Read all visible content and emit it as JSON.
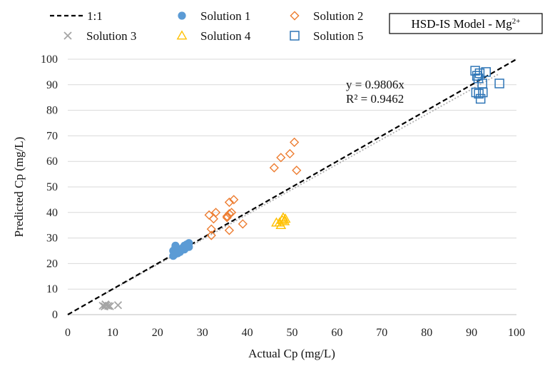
{
  "chart_data": {
    "type": "scatter",
    "title": "HSD-IS Model - Mg²⁺",
    "title_parts": {
      "main": "HSD-IS Model - Mg",
      "sup": "2+"
    },
    "xlabel": "Actual Cp (mg/L)",
    "ylabel": "Predicted Cp (mg/L)",
    "xlim": [
      0,
      100
    ],
    "ylim": [
      0,
      100
    ],
    "xticks": [
      0,
      10,
      20,
      30,
      40,
      50,
      60,
      70,
      80,
      90,
      100
    ],
    "yticks": [
      0,
      10,
      20,
      30,
      40,
      50,
      60,
      70,
      80,
      90,
      100
    ],
    "grid": "horizontal",
    "legend_position": "top",
    "reference_line": {
      "name": "1:1",
      "slope": 1,
      "color": "#000000",
      "style": "dashed"
    },
    "trendline": {
      "slope": 0.9806,
      "color": "#b0b0b0",
      "style": "dotted"
    },
    "annotations": {
      "equation": "y = 0.9806x",
      "r2": "R² = 0.9462"
    },
    "series": [
      {
        "name": "Solution 1",
        "marker": "circle",
        "color": "#5b9bd5",
        "x": [
          23.5,
          24,
          24.5,
          25,
          25.5,
          26,
          26.5,
          27,
          23.8,
          24.2,
          25,
          26,
          27,
          24,
          25.5,
          26.5,
          23.5,
          24.5
        ],
        "y": [
          25,
          26.5,
          24.5,
          25.5,
          26,
          27,
          26.5,
          28,
          23.5,
          25,
          24.5,
          25.5,
          26.5,
          27,
          26,
          27.5,
          23,
          24
        ]
      },
      {
        "name": "Solution 2",
        "marker": "diamond",
        "color": "#ed7d31",
        "x": [
          31.5,
          32,
          32.5,
          33,
          35.5,
          36,
          36.5,
          37,
          36,
          39,
          36,
          32,
          46,
          47.5,
          49.5,
          50.5,
          51,
          35.5
        ],
        "y": [
          39,
          33.5,
          37.5,
          40,
          38.5,
          44,
          40,
          45,
          33,
          35.5,
          39.5,
          31,
          57.5,
          61.5,
          63,
          67.5,
          56.5,
          38
        ]
      },
      {
        "name": "Solution 3",
        "marker": "x",
        "color": "#a5a5a5",
        "x": [
          7.8,
          8.2,
          8.6,
          9,
          9.4,
          11.2,
          8.4
        ],
        "y": [
          3.5,
          3.2,
          3.6,
          3.4,
          3.3,
          3.7,
          4
        ]
      },
      {
        "name": "Solution 4",
        "marker": "triangle",
        "color": "#ffc000",
        "x": [
          46.5,
          47.5,
          47.8,
          48,
          48.3,
          48.5,
          47.2
        ],
        "y": [
          36,
          35,
          37,
          38,
          36.5,
          37.5,
          36
        ]
      },
      {
        "name": "Solution 5",
        "marker": "square",
        "color": "#2e75b6",
        "x": [
          90.8,
          91.2,
          91.5,
          91.8,
          92,
          92.5,
          93.2,
          96.2,
          91,
          92.4,
          91.6
        ],
        "y": [
          95.5,
          93.5,
          92.5,
          94.5,
          84.5,
          87,
          95,
          90.5,
          87,
          90.5,
          86.5
        ]
      }
    ]
  }
}
